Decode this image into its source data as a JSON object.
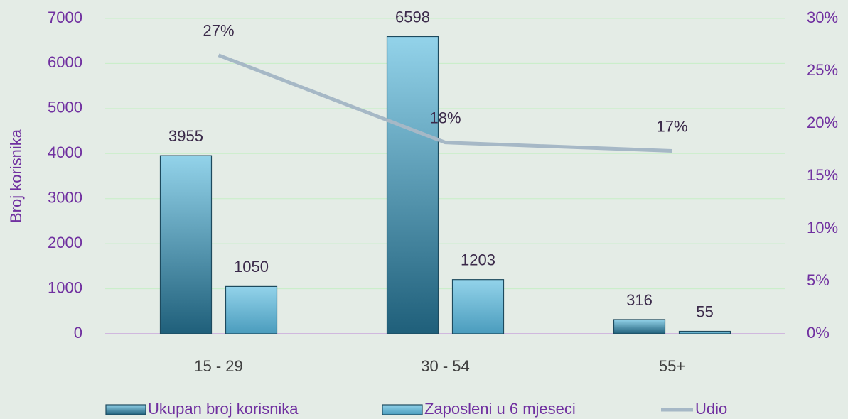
{
  "chart_data": {
    "type": "bar",
    "y_label": "Broj korisnika",
    "categories": [
      "15 - 29",
      "30 - 54",
      "55+"
    ],
    "series": [
      {
        "name": "Ukupan broj korisnika",
        "type": "bar",
        "color": "#1f5f7a",
        "values": [
          3955,
          6598,
          316
        ]
      },
      {
        "name": "Zaposleni u 6 mjeseci",
        "type": "bar",
        "color": "#4a9cbd",
        "values": [
          1050,
          1203,
          55
        ]
      },
      {
        "name": "Udio",
        "type": "line",
        "axis": "y2",
        "color": "#a6b8c6",
        "values": [
          26.5,
          18.2,
          17.4
        ],
        "value_labels": [
          "27%",
          "18%",
          "17%"
        ]
      }
    ],
    "ylim": [
      0,
      7000
    ],
    "yticks": [
      0,
      1000,
      2000,
      3000,
      4000,
      5000,
      6000,
      7000
    ],
    "y2lim": [
      0,
      30
    ],
    "y2ticks": [
      {
        "value": 0,
        "label": "0%"
      },
      {
        "value": 5,
        "label": "5%"
      },
      {
        "value": 10,
        "label": "10%"
      },
      {
        "value": 15,
        "label": "15%"
      },
      {
        "value": 20,
        "label": "20%"
      },
      {
        "value": 25,
        "label": "25%"
      },
      {
        "value": 30,
        "label": "30%"
      }
    ],
    "grid": true,
    "legend": "bottom"
  }
}
